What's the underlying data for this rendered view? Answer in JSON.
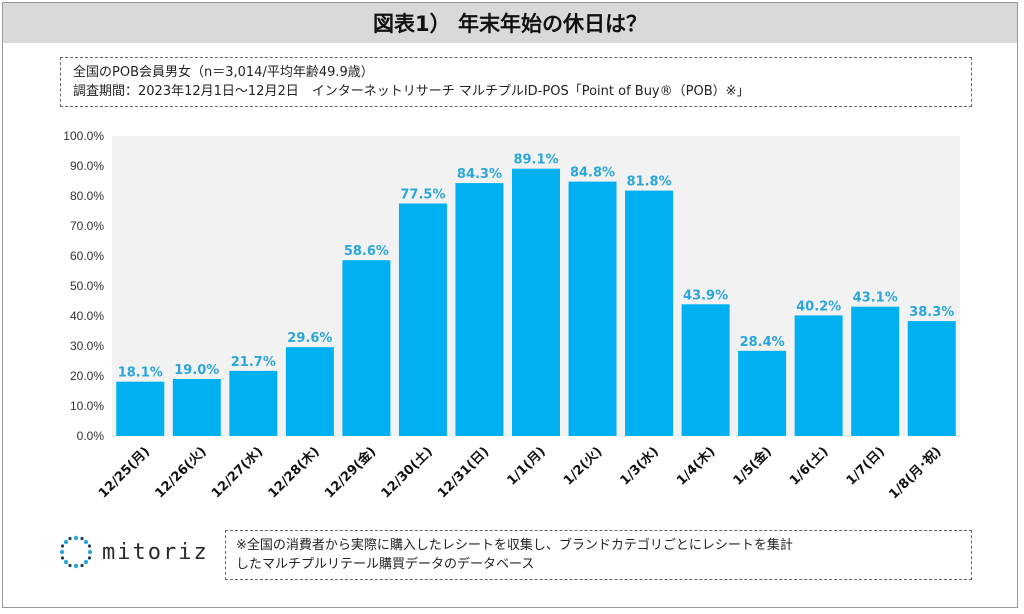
{
  "header": {
    "title": "図表1） 年末年始の休日は？"
  },
  "survey": {
    "line1": "全国のPOB会員男女（n＝3,014/平均年齢49.9歳）",
    "line2": "調査期間：2023年12月1日～12月2日　インターネットリサーチ マルチプルID-POS「Point of Buy®（POB）※」"
  },
  "footer": {
    "brand": "mitoriz",
    "note_line1": "※全国の消費者から実際に購入したレシートを収集し、ブランドカテゴリごとにレシートを集計",
    "note_line2": "したマルチプルリテール購買データのデータベース"
  },
  "colors": {
    "bar": "#00b0f0",
    "plot_bg": "#f2f2f2",
    "label": "#2aa7d8",
    "title_bg": "#d9d9d9",
    "logo_accent": "#2aa7d8"
  },
  "chart_data": {
    "type": "bar",
    "title": "",
    "xlabel": "",
    "ylabel": "",
    "categories": [
      "12/25(月)",
      "12/26(火)",
      "12/27(水)",
      "12/28(木)",
      "12/29(金)",
      "12/30(土)",
      "12/31(日)",
      "1/1(月)",
      "1/2(火)",
      "1/3(水)",
      "1/4(木)",
      "1/5(金)",
      "1/6(土)",
      "1/7(日)",
      "1/8(月･祝)"
    ],
    "values": [
      18.1,
      19.0,
      21.7,
      29.6,
      58.6,
      77.5,
      84.3,
      89.1,
      84.8,
      81.8,
      43.9,
      28.4,
      40.2,
      43.1,
      38.3
    ],
    "value_labels": [
      "18.1%",
      "19.0%",
      "21.7%",
      "29.6%",
      "58.6%",
      "77.5%",
      "84.3%",
      "89.1%",
      "84.8%",
      "81.8%",
      "43.9%",
      "28.4%",
      "40.2%",
      "43.1%",
      "38.3%"
    ],
    "ylim": [
      0,
      100
    ],
    "yticks": [
      "0.0%",
      "10.0%",
      "20.0%",
      "30.0%",
      "40.0%",
      "50.0%",
      "60.0%",
      "70.0%",
      "80.0%",
      "90.0%",
      "100.0%"
    ],
    "grid": false,
    "legend": "none"
  }
}
